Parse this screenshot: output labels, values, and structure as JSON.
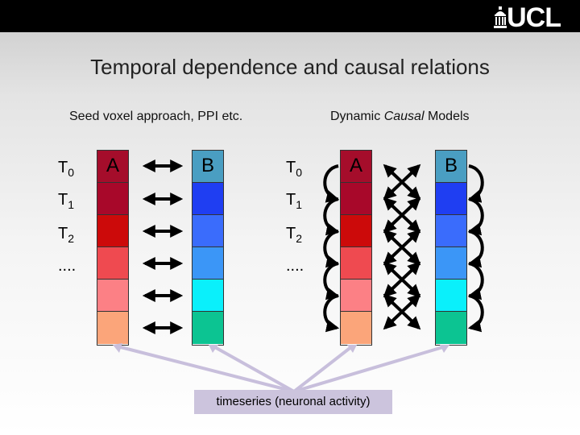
{
  "header": {
    "logo_text": "UCL"
  },
  "title": "Temporal dependence and causal relations",
  "left_panel": {
    "subtitle": "Seed voxel approach, PPI etc.",
    "row_labels": [
      {
        "main": "T",
        "sub": "0"
      },
      {
        "main": "T",
        "sub": "1"
      },
      {
        "main": "T",
        "sub": "2"
      },
      {
        "main": "....",
        "sub": ""
      }
    ],
    "region_a_label": "A",
    "region_b_label": "B"
  },
  "right_panel": {
    "subtitle_pre": "Dynamic ",
    "subtitle_em": "Causal",
    "subtitle_post": " Models",
    "row_labels": [
      {
        "main": "T",
        "sub": "0"
      },
      {
        "main": "T",
        "sub": "1"
      },
      {
        "main": "T",
        "sub": "2"
      },
      {
        "main": "....",
        "sub": ""
      }
    ],
    "region_a_label": "A",
    "region_b_label": "B"
  },
  "timeseries_label": "timeseries (neuronal activity)",
  "colors": {
    "region_a": [
      "#a50d2b",
      "#a8082a",
      "#cc0a0a",
      "#ef4a50",
      "#fc8085",
      "#fba57a"
    ],
    "region_b": [
      "#4a9ec2",
      "#1f3ef2",
      "#3a6cfc",
      "#3b96f7",
      "#0af0fb",
      "#0cc492"
    ],
    "callout_lines": "#c8bfdc",
    "arrows": "#000000"
  },
  "icons": {
    "logo": "ucl-portico-icon",
    "connections": "double-headed-arrow-icon"
  }
}
